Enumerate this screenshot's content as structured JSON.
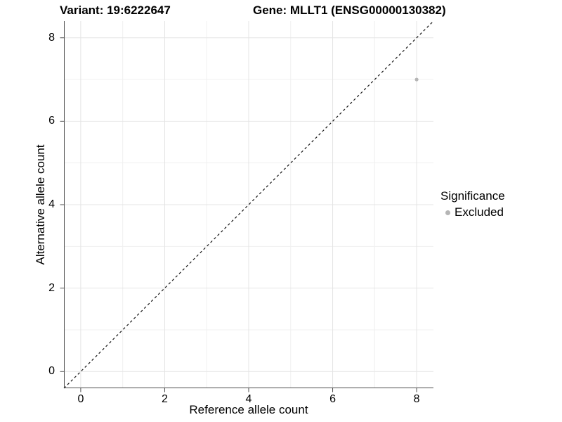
{
  "titles": {
    "variant": "Variant: 19:6222647",
    "gene": "Gene: MLLT1 (ENSG00000130382)"
  },
  "chart_data": {
    "type": "scatter",
    "title_left": "Variant: 19:6222647",
    "title_right": "Gene: MLLT1 (ENSG00000130382)",
    "xlabel": "Reference allele count",
    "ylabel": "Alternative allele count",
    "xlim": [
      -0.4,
      8.4
    ],
    "ylim": [
      -0.4,
      8.4
    ],
    "x_ticks": [
      0,
      2,
      4,
      6,
      8
    ],
    "y_ticks": [
      0,
      2,
      4,
      6,
      8
    ],
    "x_minor_ticks": [
      1,
      3,
      5,
      7
    ],
    "y_minor_ticks": [
      1,
      3,
      5,
      7
    ],
    "grid": "major+minor",
    "reference_line": {
      "type": "identity y=x",
      "style": "dashed",
      "color": "#141414"
    },
    "series": [
      {
        "name": "Excluded",
        "color": "#b5b5b5",
        "points": [
          {
            "x": 8,
            "y": 7
          }
        ]
      }
    ],
    "legend": {
      "position": "right",
      "title": "Significance",
      "entries": [
        {
          "label": "Excluded",
          "color": "#b5b5b5"
        }
      ]
    }
  }
}
